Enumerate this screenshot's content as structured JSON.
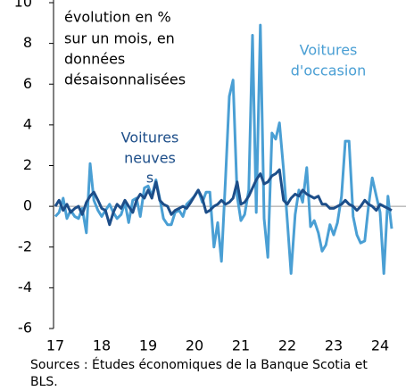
{
  "chart_data": {
    "type": "line",
    "annotations": [
      "évolution en %",
      "sur un mois, en",
      "données",
      "désaisonnalisées"
    ],
    "series_labels": [
      [
        "Voitures",
        "neuves",
        "s"
      ],
      [
        "Voitures",
        "d'occasion"
      ]
    ],
    "source": [
      "Sources : Études économiques de la Banque Scotia et",
      "BLS."
    ],
    "x": [
      17,
      17.08,
      17.17,
      17.25,
      17.33,
      17.42,
      17.5,
      17.58,
      17.67,
      17.75,
      17.83,
      17.92,
      18,
      18.08,
      18.17,
      18.25,
      18.33,
      18.42,
      18.5,
      18.58,
      18.67,
      18.75,
      18.83,
      18.92,
      19,
      19.08,
      19.17,
      19.25,
      19.33,
      19.42,
      19.5,
      19.58,
      19.67,
      19.75,
      19.83,
      19.92,
      20,
      20.08,
      20.17,
      20.25,
      20.33,
      20.42,
      20.5,
      20.58,
      20.67,
      20.75,
      20.83,
      20.92,
      21,
      21.08,
      21.17,
      21.25,
      21.33,
      21.42,
      21.5,
      21.58,
      21.67,
      21.75,
      21.83,
      21.92,
      22,
      22.08,
      22.17,
      22.25,
      22.33,
      22.42,
      22.5,
      22.58,
      22.67,
      22.75,
      22.83,
      22.92,
      23,
      23.08,
      23.17,
      23.25,
      23.33,
      23.42,
      23.5,
      23.58,
      23.67,
      23.75,
      23.83,
      23.92,
      24,
      24.08,
      24.17,
      24.25
    ],
    "series": [
      {
        "name": "Voitures neuves",
        "color": "#1d4e89",
        "values": [
          0.0,
          0.3,
          -0.2,
          0.1,
          -0.3,
          -0.1,
          0.0,
          -0.4,
          0.2,
          0.5,
          0.7,
          0.3,
          -0.1,
          -0.2,
          -0.9,
          -0.3,
          0.1,
          -0.1,
          0.3,
          0.0,
          -0.3,
          0.3,
          0.6,
          0.4,
          0.8,
          0.4,
          1.2,
          0.3,
          0.1,
          0.0,
          -0.4,
          -0.2,
          -0.1,
          0.0,
          -0.1,
          0.2,
          0.5,
          0.8,
          0.4,
          -0.3,
          -0.2,
          0.0,
          0.1,
          0.3,
          0.1,
          0.2,
          0.4,
          1.2,
          0.1,
          0.2,
          0.5,
          0.9,
          1.3,
          1.6,
          1.1,
          1.2,
          1.5,
          1.6,
          1.8,
          0.3,
          0.1,
          0.4,
          0.6,
          0.5,
          0.8,
          0.6,
          0.5,
          0.4,
          0.5,
          0.1,
          0.1,
          -0.1,
          -0.1,
          0.0,
          0.1,
          0.3,
          0.1,
          0.0,
          -0.2,
          0.0,
          0.3,
          0.1,
          0.0,
          -0.2,
          0.1,
          0.0,
          -0.1,
          -0.2
        ]
      },
      {
        "name": "Voitures d'occasion",
        "color": "#4a9fd4",
        "values": [
          -0.5,
          -0.3,
          0.4,
          -0.6,
          -0.2,
          -0.5,
          -0.6,
          -0.1,
          -1.3,
          2.1,
          0.3,
          -0.2,
          -0.5,
          -0.2,
          0.1,
          -0.3,
          -0.6,
          -0.4,
          0.2,
          -0.8,
          0.3,
          0.4,
          -0.5,
          0.9,
          1.0,
          0.5,
          1.3,
          0.4,
          -0.6,
          -0.9,
          -0.9,
          -0.3,
          -0.2,
          -0.5,
          0.1,
          0.3,
          0.5,
          0.8,
          0.2,
          0.7,
          0.7,
          -2.0,
          -0.8,
          -2.7,
          1.4,
          5.4,
          6.2,
          0.5,
          -0.7,
          -0.4,
          0.8,
          8.4,
          -0.3,
          8.9,
          -0.6,
          -2.5,
          3.6,
          3.3,
          4.1,
          1.8,
          -0.7,
          -3.3,
          -0.4,
          0.8,
          0.2,
          1.9,
          -1.0,
          -0.7,
          -1.3,
          -2.2,
          -1.9,
          -0.9,
          -1.4,
          -0.8,
          0.5,
          3.2,
          3.2,
          -0.5,
          -1.4,
          -1.8,
          -1.7,
          0.0,
          1.4,
          0.5,
          -0.3,
          -3.3,
          0.5,
          -1.1
        ]
      }
    ],
    "xlim": [
      17,
      24.5
    ],
    "xticks": [
      17,
      18,
      19,
      20,
      21,
      22,
      23,
      24
    ],
    "ylim": [
      -6,
      10
    ],
    "yticks": [
      -6,
      -4,
      -2,
      0,
      2,
      4,
      6,
      8,
      10
    ]
  }
}
